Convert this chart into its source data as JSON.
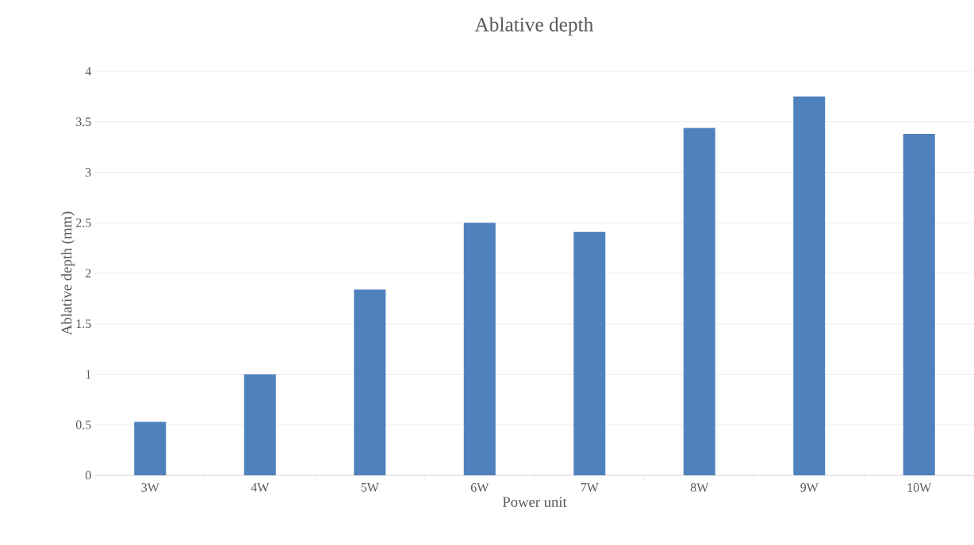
{
  "chart_data": {
    "type": "bar",
    "title": "Ablative depth",
    "xlabel": "Power unit",
    "ylabel": "Ablative depth (mm)",
    "categories": [
      "3W",
      "4W",
      "5W",
      "6W",
      "7W",
      "8W",
      "9W",
      "10W"
    ],
    "values": [
      0.53,
      1.0,
      1.84,
      2.5,
      2.41,
      3.44,
      3.75,
      3.38
    ],
    "color": "#4f81bd",
    "ylim": [
      0,
      4
    ],
    "yticks": [
      0,
      0.5,
      1,
      1.5,
      2,
      2.5,
      3,
      3.5,
      4
    ],
    "grid": "y"
  }
}
